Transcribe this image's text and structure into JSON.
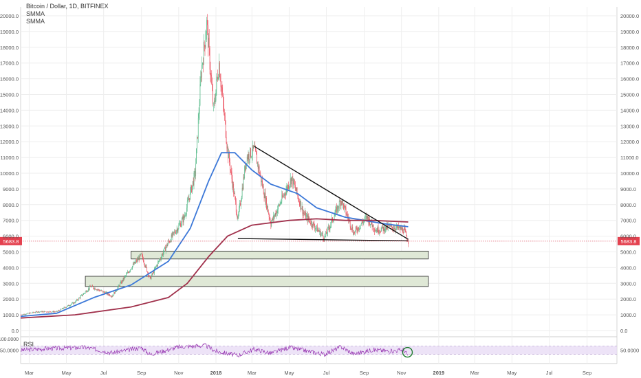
{
  "legend": {
    "title": "Bitcoin / Dollar, 1D, BITFINEX",
    "ma1": "SMMA",
    "ma2": "SMMA"
  },
  "last_price": {
    "value": 5683.8,
    "label": "5683.8"
  },
  "rsi": {
    "label": "RSI",
    "top_value": "100.0000",
    "mid_value": "50.0000",
    "right_value": "50.0000",
    "upper_band": 70,
    "lower_band": 30
  },
  "colors": {
    "up_candle": "#53b987",
    "down_candle": "#eb4d5c",
    "smma_fast": "#3c78d8",
    "smma_slow": "#a0304b",
    "rsi_line": "#8e24aa",
    "rsi_band": "#e9dcf5",
    "price_line": "#e05a6a",
    "zone_fill": "#dfe8d6",
    "grid": "#eeeeee"
  },
  "chart_data": {
    "type": "candlestick",
    "y_axis": {
      "ylim": [
        0,
        20000
      ],
      "ticks": [
        "20000.0",
        "19000.0",
        "18000.0",
        "17000.0",
        "16000.0",
        "15000.0",
        "14000.0",
        "13000.0",
        "12000.0",
        "11000.0",
        "10000.0",
        "9000.0",
        "8000.0",
        "7000.0",
        "6000.0",
        "5000.0",
        "4000.0",
        "3000.0",
        "2000.0",
        "1000.0",
        "0.0"
      ]
    },
    "x_axis": {
      "range": [
        "2017-02-15",
        "2019-10-20"
      ],
      "ticks": [
        {
          "date": "2017-03-01",
          "label": "Mar"
        },
        {
          "date": "2017-05-01",
          "label": "May"
        },
        {
          "date": "2017-07-01",
          "label": "Jul"
        },
        {
          "date": "2017-09-01",
          "label": "Sep"
        },
        {
          "date": "2017-11-01",
          "label": "Nov"
        },
        {
          "date": "2018-01-01",
          "label": "2018"
        },
        {
          "date": "2018-03-01",
          "label": "Mar"
        },
        {
          "date": "2018-05-01",
          "label": "May"
        },
        {
          "date": "2018-07-01",
          "label": "Jul"
        },
        {
          "date": "2018-09-01",
          "label": "Sep"
        },
        {
          "date": "2018-11-01",
          "label": "Nov"
        },
        {
          "date": "2019-01-01",
          "label": "2019"
        },
        {
          "date": "2019-03-01",
          "label": "Mar"
        },
        {
          "date": "2019-05-01",
          "label": "May"
        },
        {
          "date": "2019-07-01",
          "label": "Jul"
        },
        {
          "date": "2019-09-01",
          "label": "Sep"
        }
      ]
    },
    "price_path": [
      [
        "2017-02-15",
        1000
      ],
      [
        "2017-03-15",
        1200
      ],
      [
        "2017-04-15",
        1200
      ],
      [
        "2017-05-15",
        1800
      ],
      [
        "2017-06-10",
        2800
      ],
      [
        "2017-07-15",
        2200
      ],
      [
        "2017-08-15",
        4000
      ],
      [
        "2017-09-01",
        4800
      ],
      [
        "2017-09-15",
        3300
      ],
      [
        "2017-10-15",
        5600
      ],
      [
        "2017-11-10",
        7200
      ],
      [
        "2017-11-28",
        10000
      ],
      [
        "2017-12-08",
        16500
      ],
      [
        "2017-12-17",
        19500
      ],
      [
        "2017-12-28",
        14000
      ],
      [
        "2018-01-06",
        17000
      ],
      [
        "2018-01-20",
        11500
      ],
      [
        "2018-02-06",
        7000
      ],
      [
        "2018-02-20",
        11000
      ],
      [
        "2018-03-05",
        11500
      ],
      [
        "2018-04-01",
        6800
      ],
      [
        "2018-04-15",
        8000
      ],
      [
        "2018-05-05",
        9700
      ],
      [
        "2018-05-25",
        7400
      ],
      [
        "2018-06-28",
        5900
      ],
      [
        "2018-07-25",
        8300
      ],
      [
        "2018-08-15",
        6200
      ],
      [
        "2018-09-05",
        7200
      ],
      [
        "2018-09-20",
        6400
      ],
      [
        "2018-10-15",
        6600
      ],
      [
        "2018-11-05",
        6400
      ],
      [
        "2018-11-12",
        5683.8
      ]
    ],
    "series": [
      {
        "name": "SMMA",
        "values": [
          [
            "2017-02-15",
            900
          ],
          [
            "2017-04-15",
            1100
          ],
          [
            "2017-06-15",
            2100
          ],
          [
            "2017-08-15",
            2900
          ],
          [
            "2017-10-15",
            4400
          ],
          [
            "2017-11-20",
            6500
          ],
          [
            "2017-12-20",
            9500
          ],
          [
            "2018-01-10",
            11300
          ],
          [
            "2018-02-01",
            11300
          ],
          [
            "2018-03-01",
            10200
          ],
          [
            "2018-04-01",
            9300
          ],
          [
            "2018-05-15",
            8700
          ],
          [
            "2018-06-15",
            7800
          ],
          [
            "2018-08-01",
            7200
          ],
          [
            "2018-09-01",
            7000
          ],
          [
            "2018-10-01",
            6800
          ],
          [
            "2018-11-12",
            6600
          ]
        ]
      },
      {
        "name": "SMMA",
        "values": [
          [
            "2017-02-15",
            800
          ],
          [
            "2017-05-15",
            1000
          ],
          [
            "2017-08-15",
            1500
          ],
          [
            "2017-10-15",
            2100
          ],
          [
            "2017-11-15",
            3000
          ],
          [
            "2017-12-20",
            4700
          ],
          [
            "2018-01-20",
            6000
          ],
          [
            "2018-03-01",
            6700
          ],
          [
            "2018-05-01",
            7000
          ],
          [
            "2018-06-15",
            7100
          ],
          [
            "2018-08-01",
            7000
          ],
          [
            "2018-09-15",
            7000
          ],
          [
            "2018-11-12",
            6900
          ]
        ]
      }
    ],
    "annotations": {
      "descending_line": [
        [
          "2018-03-05",
          11700
        ],
        [
          "2018-11-12",
          5800
        ]
      ],
      "support_line": [
        [
          "2018-02-06",
          5850
        ],
        [
          "2018-11-12",
          5700
        ]
      ],
      "zones": [
        {
          "x": [
            "2017-08-15",
            "2018-12-15"
          ],
          "y": [
            4550,
            5050
          ]
        },
        {
          "x": [
            "2017-06-01",
            "2018-12-15"
          ],
          "y": [
            2800,
            3450
          ]
        }
      ],
      "circle": [
        "2018-11-12",
        40
      ]
    },
    "rsi_path": [
      [
        "2017-02-15",
        50
      ],
      [
        "2017-04-01",
        58
      ],
      [
        "2017-06-01",
        63
      ],
      [
        "2017-07-15",
        38
      ],
      [
        "2017-09-01",
        62
      ],
      [
        "2017-09-15",
        30
      ],
      [
        "2017-11-01",
        65
      ],
      [
        "2017-12-15",
        72
      ],
      [
        "2018-01-01",
        45
      ],
      [
        "2018-02-06",
        25
      ],
      [
        "2018-03-05",
        55
      ],
      [
        "2018-04-01",
        35
      ],
      [
        "2018-05-01",
        63
      ],
      [
        "2018-06-28",
        30
      ],
      [
        "2018-07-25",
        66
      ],
      [
        "2018-08-15",
        32
      ],
      [
        "2018-09-15",
        52
      ],
      [
        "2018-10-15",
        45
      ],
      [
        "2018-11-05",
        52
      ],
      [
        "2018-11-12",
        24
      ]
    ]
  }
}
